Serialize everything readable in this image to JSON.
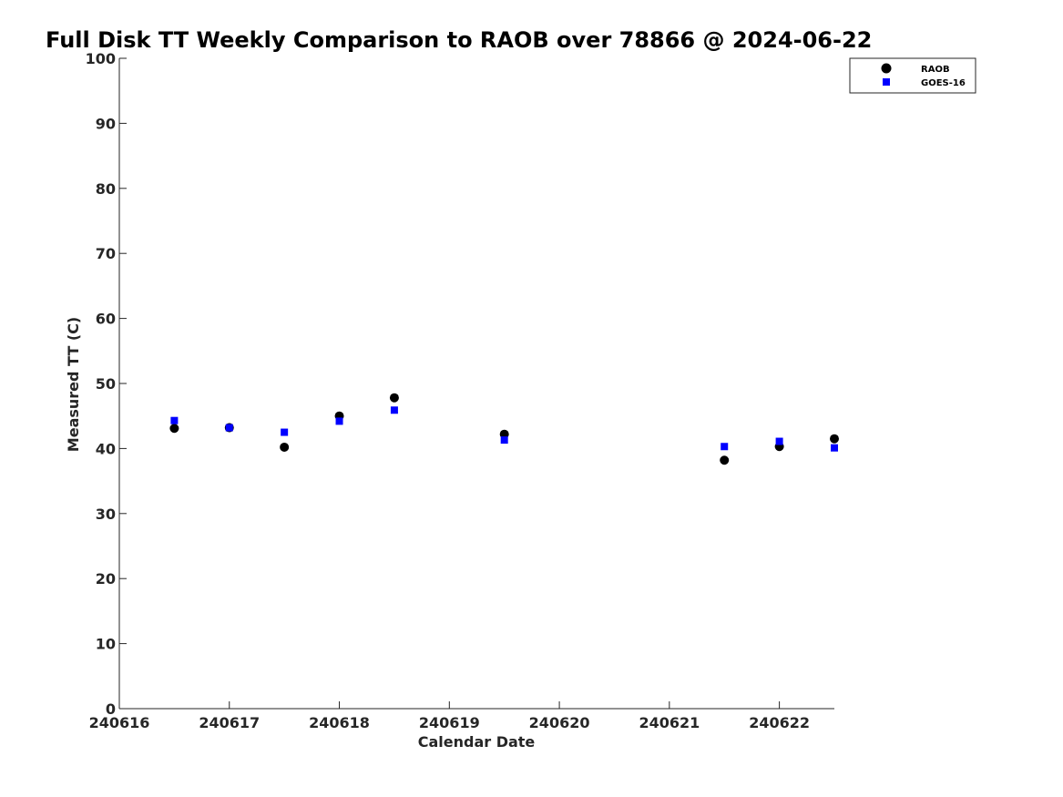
{
  "chart_data": {
    "type": "scatter",
    "title": "Full Disk TT Weekly Comparison to RAOB over 78866 @ 2024-06-22",
    "xlabel": "Calendar Date",
    "ylabel": "Measured TT (C)",
    "xlim": [
      "240616",
      "240622.5"
    ],
    "ylim": [
      0,
      100
    ],
    "x_ticks": [
      "240616",
      "240617",
      "240618",
      "240619",
      "240620",
      "240621",
      "240622"
    ],
    "y_ticks": [
      0,
      10,
      20,
      30,
      40,
      50,
      60,
      70,
      80,
      90,
      100
    ],
    "grid": false,
    "legend_position": "top-right",
    "series": [
      {
        "name": "RAOB",
        "marker": "circle",
        "color": "#000000",
        "points": [
          {
            "x": "240616.5",
            "y": 43.1
          },
          {
            "x": "240617.0",
            "y": 43.2
          },
          {
            "x": "240617.5",
            "y": 40.2
          },
          {
            "x": "240618.0",
            "y": 45.0
          },
          {
            "x": "240618.5",
            "y": 47.8
          },
          {
            "x": "240619.5",
            "y": 42.2
          },
          {
            "x": "240621.5",
            "y": 38.2
          },
          {
            "x": "240622.0",
            "y": 40.3
          },
          {
            "x": "240622.5",
            "y": 41.5
          }
        ]
      },
      {
        "name": "GOES-16",
        "marker": "square",
        "color": "#0000ff",
        "points": [
          {
            "x": "240616.5",
            "y": 44.3
          },
          {
            "x": "240617.0",
            "y": 43.2
          },
          {
            "x": "240617.5",
            "y": 42.5
          },
          {
            "x": "240618.0",
            "y": 44.2
          },
          {
            "x": "240618.5",
            "y": 45.9
          },
          {
            "x": "240619.5",
            "y": 41.3
          },
          {
            "x": "240621.5",
            "y": 40.3
          },
          {
            "x": "240622.0",
            "y": 41.1
          },
          {
            "x": "240622.5",
            "y": 40.1
          }
        ]
      }
    ]
  }
}
